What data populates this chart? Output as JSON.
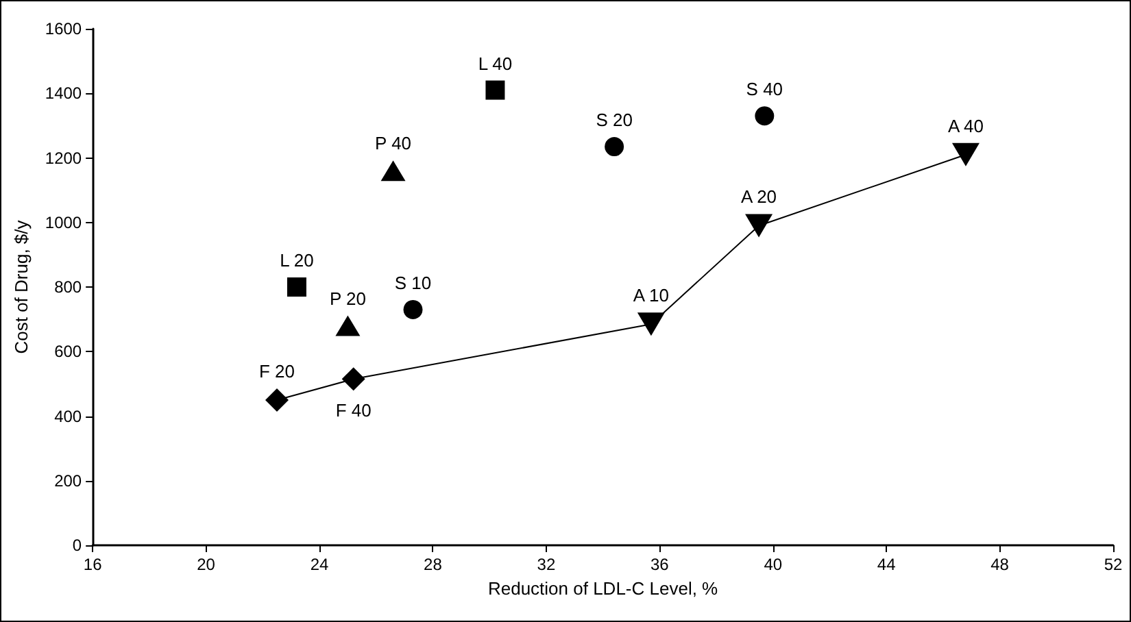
{
  "chart_data": {
    "type": "scatter",
    "xlabel": "Reduction of LDL-C Level, %",
    "ylabel": "Cost of Drug, $/y",
    "xlim": [
      16,
      52
    ],
    "xticks": [
      16,
      20,
      24,
      28,
      32,
      36,
      40,
      44,
      48,
      52
    ],
    "ylim": [
      0,
      1600
    ],
    "yticks": [
      0,
      200,
      400,
      600,
      800,
      1000,
      1200,
      1400,
      1600
    ],
    "grid": false,
    "series": [
      {
        "type": "line",
        "marker": "none",
        "color": "#000000",
        "x": [
          22.5,
          25.2,
          35.7,
          39.5,
          46.8
        ],
        "values": [
          450,
          515,
          685,
          990,
          1210
        ]
      },
      {
        "marker": "diamond",
        "color": "#000000",
        "x": [
          22.5,
          25.2
        ],
        "values": [
          450,
          515
        ],
        "value_labels": [
          "F 20",
          "F 40"
        ]
      },
      {
        "marker": "square",
        "color": "#000000",
        "x": [
          23.2,
          30.2
        ],
        "values": [
          800,
          1410
        ],
        "value_labels": [
          "L 20",
          "L 40"
        ]
      },
      {
        "marker": "triangle",
        "color": "#000000",
        "x": [
          25.0,
          26.6
        ],
        "values": [
          680,
          1160
        ],
        "value_labels": [
          "P 20",
          "P 40"
        ]
      },
      {
        "marker": "circle",
        "color": "#000000",
        "x": [
          27.3,
          34.4,
          39.7
        ],
        "values": [
          730,
          1235,
          1330
        ],
        "value_labels": [
          "S 10",
          "S 20",
          "S 40"
        ]
      },
      {
        "marker": "triangle-down",
        "color": "#000000",
        "x": [
          35.7,
          39.5,
          46.8
        ],
        "values": [
          685,
          990,
          1210
        ],
        "value_labels": [
          "A 10",
          "A 20",
          "A 40"
        ]
      }
    ]
  }
}
